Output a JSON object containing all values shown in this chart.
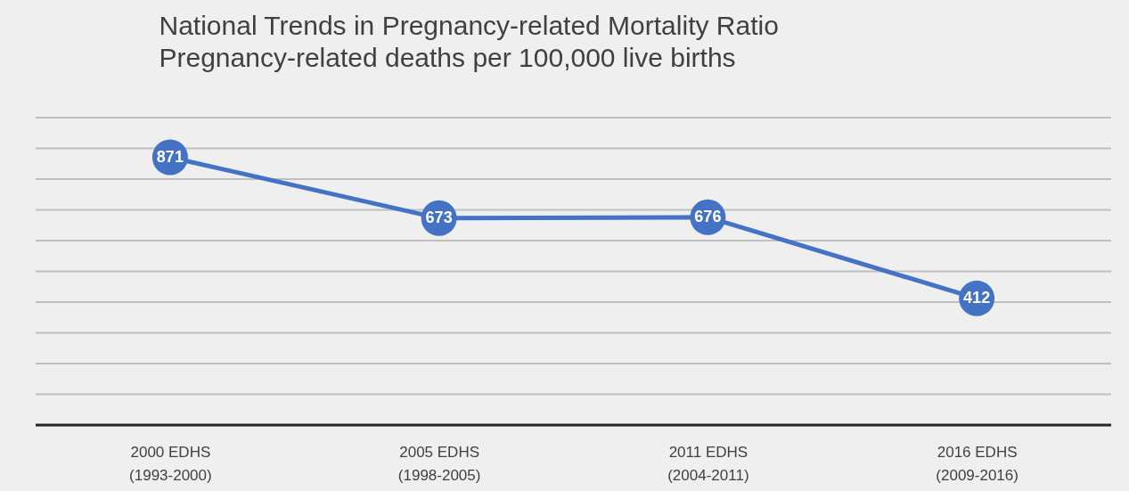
{
  "chart_data": {
    "type": "line",
    "title": "National Trends in Pregnancy-related Mortality Ratio",
    "subtitle": "Pregnancy-related deaths per 100,000 live births",
    "categories": [
      "2000 EDHS\n(1993-2000)",
      "2005 EDHS\n(1998-2005)",
      "2011 EDHS\n(2004-2011)",
      "2016 EDHS\n(2009-2016)"
    ],
    "series": [
      {
        "color": "#4472c4",
        "values": [
          871,
          673,
          676,
          412
        ]
      }
    ],
    "ylim": [
      0,
      1000
    ],
    "yticks": [
      {
        "value": 0,
        "label": null
      },
      {
        "value": 100,
        "label": null
      },
      {
        "value": 200,
        "label": null
      },
      {
        "value": 300,
        "label": null
      },
      {
        "value": 400,
        "label": null
      },
      {
        "value": 500,
        "label": null
      },
      {
        "value": 600,
        "label": null
      },
      {
        "value": 700,
        "label": null
      },
      {
        "value": 800,
        "label": null
      },
      {
        "value": 900,
        "label": null
      },
      {
        "value": 1000,
        "label": null
      }
    ],
    "tick_labels": "x",
    "grid": "y",
    "marker": "circle",
    "line_style": "solid",
    "data_labels": true
  }
}
